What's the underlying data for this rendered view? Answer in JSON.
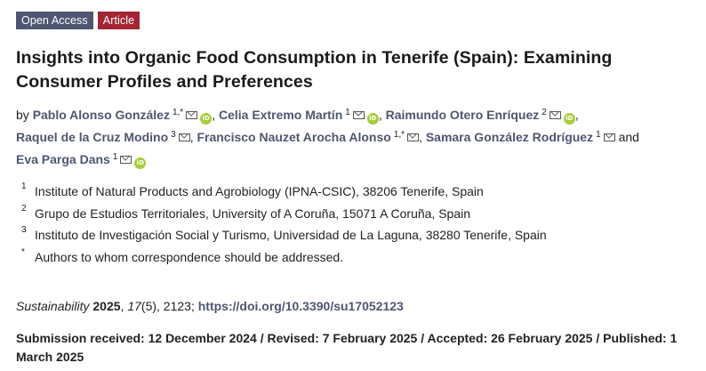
{
  "badges": {
    "open_access": "Open Access",
    "article": "Article"
  },
  "title": "Insights into Organic Food Consumption in Tenerife (Spain): Examining Consumer Profiles and Preferences",
  "authors_prefix": "by",
  "and_word": "and",
  "authors": [
    {
      "name": "Pablo Alonso González",
      "sup": "1,*",
      "email": true,
      "orcid": true,
      "sep": ","
    },
    {
      "name": "Celia Extremo Martín",
      "sup": "1",
      "email": true,
      "orcid": true,
      "sep": ","
    },
    {
      "name": "Raimundo Otero Enríquez",
      "sup": "2",
      "email": true,
      "orcid": true,
      "sep": ","
    },
    {
      "name": "Raquel de la Cruz Modino",
      "sup": "3",
      "email": true,
      "orcid": false,
      "sep": ","
    },
    {
      "name": "Francisco Nauzet Arocha Alonso",
      "sup": "1,*",
      "email": true,
      "orcid": false,
      "sep": ","
    },
    {
      "name": "Samara González Rodríguez",
      "sup": "1",
      "email": true,
      "orcid": false,
      "sep": ""
    },
    {
      "name": "Eva Parga Dans",
      "sup": "1",
      "email": true,
      "orcid": true,
      "sep": ""
    }
  ],
  "affiliations": [
    {
      "num": "1",
      "text": "Institute of Natural Products and Agrobiology (IPNA-CSIC), 38206 Tenerife, Spain"
    },
    {
      "num": "2",
      "text": "Grupo de Estudios Territoriales, University of A Coruña, 15071 A Coruña, Spain"
    },
    {
      "num": "3",
      "text": "Instituto de Investigación Social y Turismo, Universidad de La Laguna, 38280 Tenerife, Spain"
    },
    {
      "num": "*",
      "text": "Authors to whom correspondence should be addressed."
    }
  ],
  "citation": {
    "journal": "Sustainability",
    "year": "2025",
    "volume": "17",
    "issue": "(5)",
    "pages": ", 2123; ",
    "doi": "https://doi.org/10.3390/su17052123"
  },
  "dates": "Submission received: 12 December 2024 / Revised: 7 February 2025 / Accepted: 26 February 2025 / Published: 1 March 2025",
  "icons": {
    "email": "mail-icon",
    "orcid": "orcid-icon"
  },
  "colors": {
    "open_access_badge": "#4f5671",
    "article_badge": "#a32532",
    "author_link": "#4f5671",
    "orcid": "#a6ce39"
  }
}
